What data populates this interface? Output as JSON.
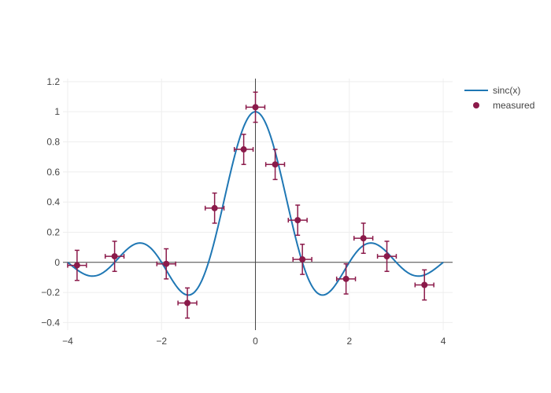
{
  "chart_data": {
    "type": "scatter",
    "title": "",
    "xlabel": "",
    "ylabel": "",
    "xlim": [
      -4.1,
      4.2
    ],
    "ylim": [
      -0.45,
      1.22
    ],
    "x_ticks": [
      -4,
      -2,
      0,
      2,
      4
    ],
    "x_tick_labels": [
      "−4",
      "−2",
      "0",
      "2",
      "4"
    ],
    "y_ticks": [
      -0.4,
      -0.2,
      0,
      0.2,
      0.4,
      0.6,
      0.8,
      1,
      1.2
    ],
    "y_tick_labels": [
      "−0.4",
      "−0.2",
      "0",
      "0.2",
      "0.4",
      "0.6",
      "0.8",
      "1",
      "1.2"
    ],
    "grid": true,
    "legend_position": "top-right",
    "series": [
      {
        "name": "sinc(x)",
        "kind": "line",
        "color": "#1f77b4",
        "function": "sin(pi*x)/(pi*x)",
        "x_range": [
          -4,
          4
        ]
      },
      {
        "name": "measured",
        "kind": "markers",
        "color": "#8b1a4a",
        "points": [
          {
            "x": -3.8,
            "y": -0.02,
            "x_err": 0.2,
            "y_err": 0.1
          },
          {
            "x": -3.0,
            "y": 0.04,
            "x_err": 0.2,
            "y_err": 0.1
          },
          {
            "x": -1.9,
            "y": -0.01,
            "x_err": 0.2,
            "y_err": 0.1
          },
          {
            "x": -1.45,
            "y": -0.27,
            "x_err": 0.2,
            "y_err": 0.1
          },
          {
            "x": -0.87,
            "y": 0.36,
            "x_err": 0.2,
            "y_err": 0.1
          },
          {
            "x": -0.25,
            "y": 0.75,
            "x_err": 0.2,
            "y_err": 0.1
          },
          {
            "x": 0.0,
            "y": 1.03,
            "x_err": 0.2,
            "y_err": 0.1
          },
          {
            "x": 0.42,
            "y": 0.65,
            "x_err": 0.2,
            "y_err": 0.1
          },
          {
            "x": 0.9,
            "y": 0.28,
            "x_err": 0.2,
            "y_err": 0.1
          },
          {
            "x": 1.0,
            "y": 0.02,
            "x_err": 0.2,
            "y_err": 0.1
          },
          {
            "x": 1.93,
            "y": -0.11,
            "x_err": 0.2,
            "y_err": 0.1
          },
          {
            "x": 2.3,
            "y": 0.16,
            "x_err": 0.2,
            "y_err": 0.1
          },
          {
            "x": 2.8,
            "y": 0.04,
            "x_err": 0.2,
            "y_err": 0.1
          },
          {
            "x": 3.6,
            "y": -0.15,
            "x_err": 0.2,
            "y_err": 0.1
          }
        ]
      }
    ]
  }
}
